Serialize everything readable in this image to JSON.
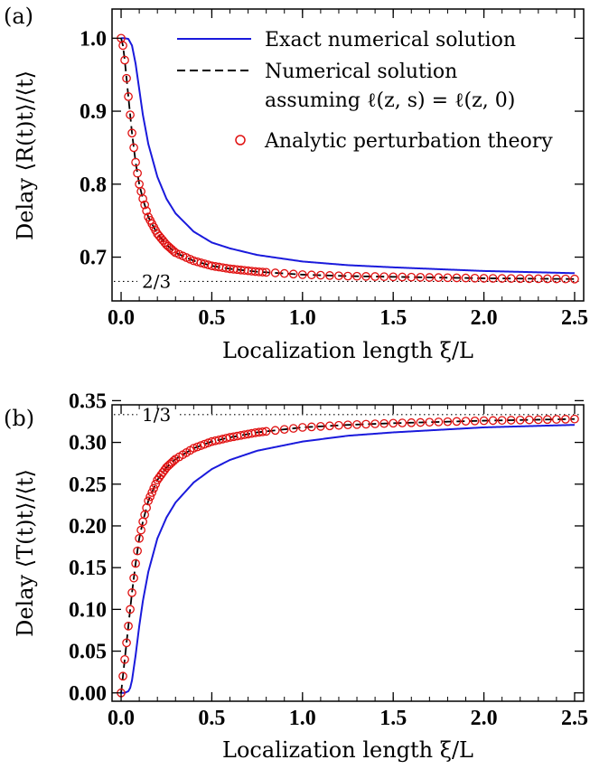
{
  "chart_data": [
    {
      "type": "line",
      "panel_label": "(a)",
      "xlabel": "Localization length ξ/L",
      "ylabel": "Delay ⟨R(t)t⟩/⟨t⟩",
      "xlim": [
        -0.05,
        2.55
      ],
      "ylim": [
        0.64,
        1.04
      ],
      "x_ticks": [
        0.0,
        0.5,
        1.0,
        1.5,
        2.0,
        2.5
      ],
      "x_tick_labels": [
        "0.0",
        "0.5",
        "1.0",
        "1.5",
        "2.0",
        "2.5"
      ],
      "y_ticks": [
        0.7,
        0.8,
        0.9,
        1.0
      ],
      "y_tick_labels": [
        "0.7",
        "0.8",
        "0.9",
        "1.0"
      ],
      "reference_line": {
        "y": 0.6667,
        "label": "2/3"
      },
      "legend": {
        "position": "top-right",
        "entries": [
          {
            "label": "Exact numerical solution",
            "style": "solid",
            "color": "#1a1adc"
          },
          {
            "label_line1": "Numerical solution",
            "label_line2": "assuming ℓ(z, s) = ℓ(z, 0)",
            "style": "dashed",
            "color": "#000000"
          },
          {
            "label": "Analytic perturbation theory",
            "style": "circle",
            "color": "#e01010"
          }
        ]
      },
      "series": [
        {
          "name": "Exact numerical solution",
          "style": "solid",
          "x": [
            0.0,
            0.02,
            0.04,
            0.06,
            0.08,
            0.1,
            0.12,
            0.15,
            0.2,
            0.25,
            0.3,
            0.4,
            0.5,
            0.6,
            0.75,
            1.0,
            1.25,
            1.5,
            2.0,
            2.5
          ],
          "y": [
            1.0,
            1.0,
            0.999,
            0.99,
            0.965,
            0.93,
            0.895,
            0.855,
            0.81,
            0.78,
            0.76,
            0.735,
            0.72,
            0.712,
            0.703,
            0.694,
            0.689,
            0.686,
            0.681,
            0.678
          ]
        },
        {
          "name": "Numerical solution assuming ℓ(z, s) = ℓ(z, 0)",
          "style": "dashed",
          "x": [
            0.0,
            0.01,
            0.02,
            0.03,
            0.04,
            0.05,
            0.06,
            0.08,
            0.1,
            0.12,
            0.15,
            0.2,
            0.25,
            0.3,
            0.4,
            0.5,
            0.6,
            0.75,
            1.0,
            1.25,
            1.5,
            2.0,
            2.5
          ],
          "y": [
            1.0,
            0.99,
            0.97,
            0.945,
            0.92,
            0.895,
            0.87,
            0.83,
            0.8,
            0.78,
            0.755,
            0.732,
            0.717,
            0.706,
            0.695,
            0.688,
            0.684,
            0.68,
            0.676,
            0.674,
            0.673,
            0.671,
            0.67
          ]
        },
        {
          "name": "Analytic perturbation theory",
          "style": "markers",
          "x": [
            0.0,
            0.01,
            0.02,
            0.03,
            0.04,
            0.05,
            0.06,
            0.08,
            0.1,
            0.12,
            0.15,
            0.2,
            0.25,
            0.3,
            0.4,
            0.5,
            0.6,
            0.75,
            1.0,
            1.25,
            1.5,
            2.0,
            2.5
          ],
          "y": [
            1.0,
            0.99,
            0.97,
            0.945,
            0.92,
            0.895,
            0.87,
            0.83,
            0.8,
            0.78,
            0.755,
            0.732,
            0.717,
            0.706,
            0.695,
            0.688,
            0.684,
            0.68,
            0.676,
            0.674,
            0.673,
            0.671,
            0.67
          ]
        }
      ]
    },
    {
      "type": "line",
      "panel_label": "(b)",
      "xlabel": "Localization length ξ/L",
      "ylabel": "Delay ⟨T(t)t⟩/⟨t⟩",
      "xlim": [
        -0.05,
        2.55
      ],
      "ylim": [
        -0.01,
        0.345
      ],
      "x_ticks": [
        0.0,
        0.5,
        1.0,
        1.5,
        2.0,
        2.5
      ],
      "x_tick_labels": [
        "0.0",
        "0.5",
        "1.0",
        "1.5",
        "2.0",
        "2.5"
      ],
      "y_ticks": [
        0.0,
        0.05,
        0.1,
        0.15,
        0.2,
        0.25,
        0.3,
        0.35
      ],
      "y_tick_labels": [
        "0.00",
        "0.05",
        "0.10",
        "0.15",
        "0.20",
        "0.25",
        "0.30",
        "0.35"
      ],
      "reference_line": {
        "y": 0.3333,
        "label": "1/3"
      },
      "series": [
        {
          "name": "Exact numerical solution",
          "style": "solid",
          "x": [
            0.0,
            0.02,
            0.04,
            0.05,
            0.06,
            0.08,
            0.1,
            0.12,
            0.15,
            0.2,
            0.25,
            0.3,
            0.4,
            0.5,
            0.6,
            0.75,
            1.0,
            1.25,
            1.5,
            2.0,
            2.5
          ],
          "y": [
            0.0,
            0.0,
            0.002,
            0.006,
            0.015,
            0.045,
            0.08,
            0.11,
            0.145,
            0.185,
            0.21,
            0.228,
            0.252,
            0.268,
            0.279,
            0.29,
            0.301,
            0.308,
            0.312,
            0.318,
            0.321
          ]
        },
        {
          "name": "Numerical solution assuming ℓ(z, s) = ℓ(z, 0)",
          "style": "dashed",
          "x": [
            0.0,
            0.01,
            0.02,
            0.03,
            0.04,
            0.05,
            0.06,
            0.08,
            0.1,
            0.12,
            0.15,
            0.2,
            0.25,
            0.3,
            0.4,
            0.5,
            0.6,
            0.75,
            1.0,
            1.25,
            1.5,
            2.0,
            2.5
          ],
          "y": [
            0.0,
            0.02,
            0.04,
            0.06,
            0.08,
            0.1,
            0.12,
            0.155,
            0.185,
            0.205,
            0.23,
            0.255,
            0.27,
            0.28,
            0.293,
            0.301,
            0.306,
            0.312,
            0.318,
            0.321,
            0.323,
            0.326,
            0.328
          ]
        },
        {
          "name": "Analytic perturbation theory",
          "style": "markers",
          "x": [
            0.0,
            0.01,
            0.02,
            0.03,
            0.04,
            0.05,
            0.06,
            0.08,
            0.1,
            0.12,
            0.15,
            0.2,
            0.25,
            0.3,
            0.4,
            0.5,
            0.6,
            0.75,
            1.0,
            1.25,
            1.5,
            2.0,
            2.5
          ],
          "y": [
            0.0,
            0.02,
            0.04,
            0.06,
            0.08,
            0.1,
            0.12,
            0.155,
            0.185,
            0.205,
            0.23,
            0.255,
            0.27,
            0.28,
            0.293,
            0.301,
            0.306,
            0.312,
            0.318,
            0.321,
            0.323,
            0.326,
            0.328
          ]
        }
      ]
    }
  ]
}
